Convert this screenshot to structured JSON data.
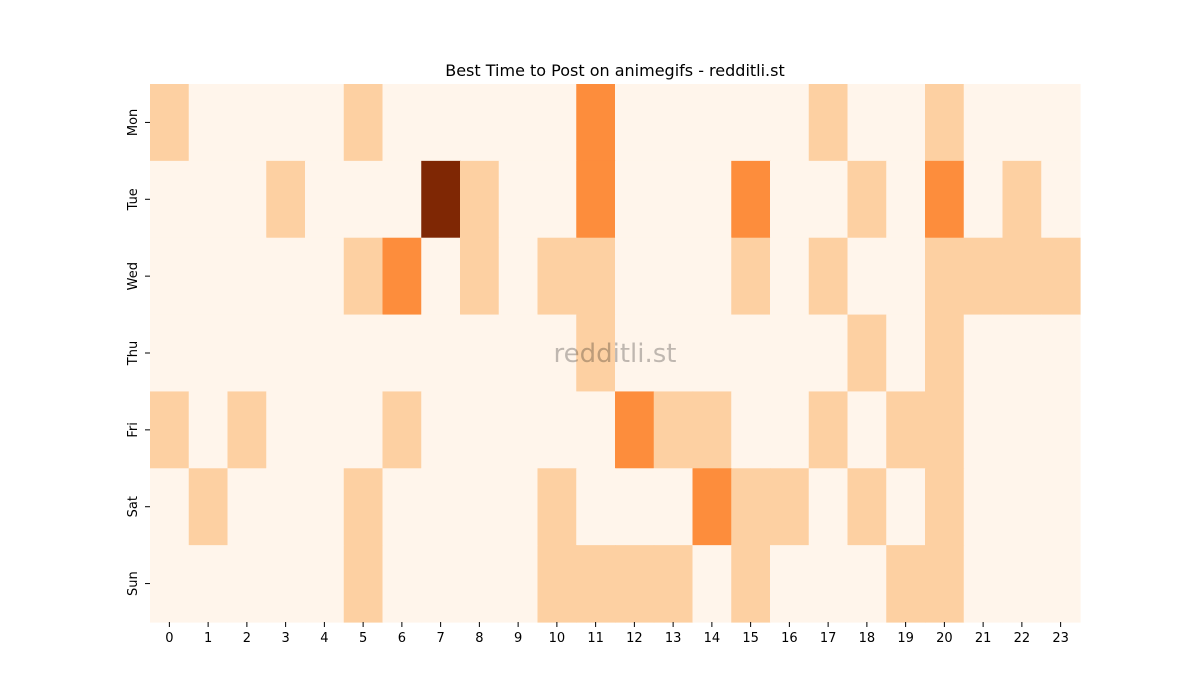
{
  "chart_data": {
    "type": "heatmap",
    "title": "Best Time to Post on animegifs - redditli.st",
    "watermark": "redditli.st",
    "xlabel": "",
    "ylabel": "",
    "x_categories": [
      "0",
      "1",
      "2",
      "3",
      "4",
      "5",
      "6",
      "7",
      "8",
      "9",
      "10",
      "11",
      "12",
      "13",
      "14",
      "15",
      "16",
      "17",
      "18",
      "19",
      "20",
      "21",
      "22",
      "23"
    ],
    "y_categories": [
      "Mon",
      "Tue",
      "Wed",
      "Thu",
      "Fri",
      "Sat",
      "Sun"
    ],
    "values": [
      [
        1,
        0,
        0,
        0,
        0,
        1,
        0,
        0,
        0,
        0,
        0,
        2,
        0,
        0,
        0,
        0,
        0,
        1,
        0,
        0,
        1,
        0,
        0,
        0
      ],
      [
        0,
        0,
        0,
        1,
        0,
        0,
        0,
        4,
        1,
        0,
        0,
        2,
        0,
        0,
        0,
        2,
        0,
        0,
        1,
        0,
        2,
        0,
        1,
        0
      ],
      [
        0,
        0,
        0,
        0,
        0,
        1,
        2,
        0,
        1,
        0,
        1,
        1,
        0,
        0,
        0,
        1,
        0,
        1,
        0,
        0,
        1,
        1,
        1,
        1
      ],
      [
        0,
        0,
        0,
        0,
        0,
        0,
        0,
        0,
        0,
        0,
        0,
        1,
        0,
        0,
        0,
        0,
        0,
        0,
        1,
        0,
        1,
        0,
        0,
        0
      ],
      [
        1,
        0,
        1,
        0,
        0,
        0,
        1,
        0,
        0,
        0,
        0,
        0,
        2,
        1,
        1,
        0,
        0,
        1,
        0,
        1,
        1,
        0,
        0,
        0
      ],
      [
        0,
        1,
        0,
        0,
        0,
        1,
        0,
        0,
        0,
        0,
        1,
        0,
        0,
        0,
        2,
        1,
        1,
        0,
        1,
        0,
        1,
        0,
        0,
        0
      ],
      [
        0,
        0,
        0,
        0,
        0,
        1,
        0,
        0,
        0,
        0,
        1,
        1,
        1,
        1,
        0,
        1,
        0,
        0,
        0,
        1,
        1,
        0,
        0,
        0
      ]
    ],
    "color_scale": {
      "0": "#fff5eb",
      "1": "#fdd0a2",
      "2": "#fd8d3c",
      "4": "#7f2704"
    },
    "colormap": "Oranges",
    "grid": false
  }
}
